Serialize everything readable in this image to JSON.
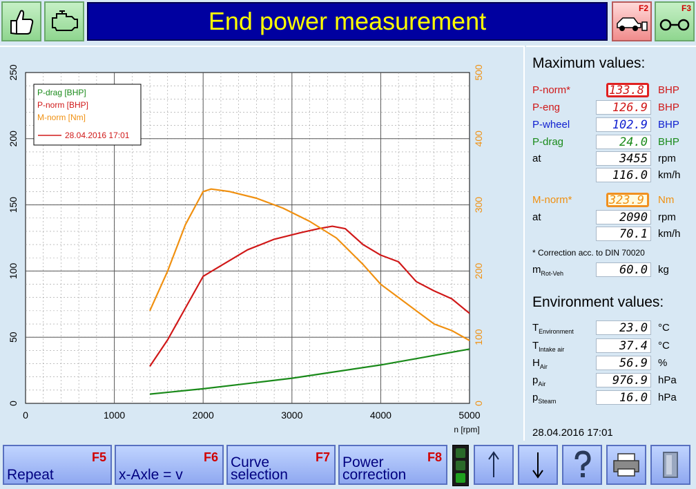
{
  "header": {
    "title": "End power measurement",
    "btn_f2": "F2",
    "btn_f3": "F3",
    "left_icons": [
      "thumbs-up-icon",
      "engine-icon"
    ],
    "right_icons": [
      "car-on-dyno-icon",
      "roller-icon"
    ]
  },
  "chart_data": {
    "type": "line",
    "xlabel": "n [rpm]",
    "x_ticks": [
      "0",
      "1000",
      "2000",
      "3000",
      "4000",
      "5000"
    ],
    "xlim": [
      0,
      5000
    ],
    "y_left_ticks": [
      "0",
      "50",
      "100",
      "150",
      "200",
      "250"
    ],
    "ylim_left": [
      0,
      250
    ],
    "y_right_ticks": [
      "0",
      "100",
      "200",
      "300",
      "400",
      "500"
    ],
    "ylim_right": [
      0,
      500
    ],
    "grid": true,
    "legend": {
      "placement": "top-left",
      "entries": [
        "P-drag [BHP]",
        "P-norm [BHP]",
        "M-norm [Nm]"
      ],
      "run_label": "28.04.2016 17:01"
    },
    "series": [
      {
        "name": "P-drag [BHP]",
        "axis": "left",
        "color": "#1a8a1a",
        "x": [
          1400,
          2000,
          2500,
          3000,
          3500,
          4000,
          4500,
          5000
        ],
        "y": [
          7,
          11,
          15,
          19,
          24,
          29,
          35,
          41
        ]
      },
      {
        "name": "P-norm [BHP]",
        "axis": "left",
        "color": "#d01818",
        "x": [
          1400,
          1600,
          1800,
          2000,
          2200,
          2500,
          2800,
          3100,
          3300,
          3455,
          3600,
          3800,
          4000,
          4200,
          4400,
          4600,
          4800,
          5000
        ],
        "y": [
          28,
          48,
          72,
          96,
          104,
          116,
          124,
          129,
          132,
          133.8,
          132,
          120,
          112,
          107,
          92,
          85,
          79,
          68
        ]
      },
      {
        "name": "M-norm [Nm]",
        "axis": "right",
        "color": "#f09010",
        "x": [
          1400,
          1600,
          1800,
          2000,
          2090,
          2300,
          2600,
          2900,
          3200,
          3500,
          3800,
          4000,
          4200,
          4400,
          4600,
          4800,
          5000
        ],
        "y": [
          140,
          200,
          270,
          320,
          323.9,
          320,
          310,
          295,
          275,
          250,
          210,
          180,
          160,
          140,
          120,
          110,
          95
        ]
      }
    ]
  },
  "max_values": {
    "title": "Maximum values:",
    "rows": [
      {
        "label": "P-norm*",
        "value": "133.8",
        "unit": "BHP",
        "color": "#d01818",
        "val_color": "#d01818"
      },
      {
        "label": "P-eng",
        "value": "126.9",
        "unit": "BHP",
        "color": "#d01818",
        "val_color": "#d01818"
      },
      {
        "label": "P-wheel",
        "value": "102.9",
        "unit": "BHP",
        "color": "#1020d0",
        "val_color": "#1020d0"
      },
      {
        "label": "P-drag",
        "value": "24.0",
        "unit": "BHP",
        "color": "#1a8a1a",
        "val_color": "#1a8a1a"
      },
      {
        "label": "at",
        "value": "3455",
        "unit": "rpm",
        "color": "#000000",
        "val_color": "#000000"
      },
      {
        "label": "",
        "value": "116.0",
        "unit": "km/h",
        "color": "#000000",
        "val_color": "#000000"
      },
      {
        "label": "M-norm*",
        "value": "323.9",
        "unit": "Nm",
        "color": "#f09010",
        "val_color": "#f09010"
      },
      {
        "label": "at",
        "value": "2090",
        "unit": "rpm",
        "color": "#000000",
        "val_color": "#000000"
      },
      {
        "label": "",
        "value": "70.1",
        "unit": "km/h",
        "color": "#000000",
        "val_color": "#000000"
      }
    ],
    "note": "* Correction acc. to DIN 70020",
    "mrot_label": "m",
    "mrot_sub": "Rot-Veh",
    "mrot_value": "60.0",
    "mrot_unit": "kg"
  },
  "environment": {
    "title": "Environment values:",
    "rows": [
      {
        "label": "T",
        "sub": "Environment",
        "value": "23.0",
        "unit": "°C"
      },
      {
        "label": "T",
        "sub": "Intake air",
        "value": "37.4",
        "unit": "°C"
      },
      {
        "label": "H",
        "sub": "Air",
        "value": "56.9",
        "unit": "%"
      },
      {
        "label": "p",
        "sub": "Air",
        "value": "976.9",
        "unit": "hPa"
      },
      {
        "label": "p",
        "sub": "Steam",
        "value": "16.0",
        "unit": "hPa"
      }
    ]
  },
  "datetime": "28.04.2016   17:01",
  "footer": {
    "buttons": [
      {
        "text": "Repeat",
        "key": "F5"
      },
      {
        "text": "x-Axle = v",
        "key": "F6"
      },
      {
        "text": "Curve selection",
        "key": "F7"
      },
      {
        "text": "Power correction",
        "key": "F8"
      }
    ],
    "icons": [
      "arrow-up-icon",
      "arrow-down-icon",
      "help-icon",
      "printer-icon",
      "door-icon"
    ]
  }
}
